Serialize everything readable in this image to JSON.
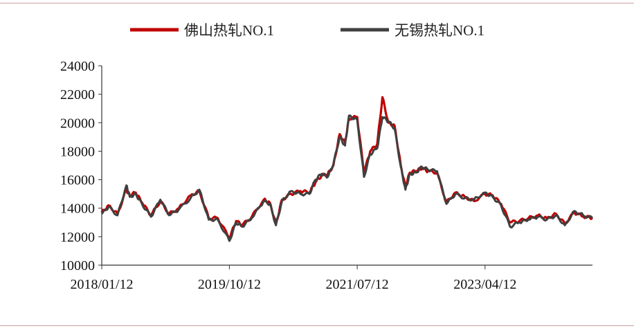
{
  "chart_data": {
    "type": "line",
    "legend_position": "top",
    "grid": false,
    "ylim": [
      10000,
      24000
    ],
    "yticks": [
      "24000",
      "22000",
      "20000",
      "18000",
      "16000",
      "14000",
      "12000",
      "10000"
    ],
    "xticks": [
      "2018/01/12",
      "2019/10/12",
      "2021/07/12",
      "2023/04/12"
    ],
    "xrange": [
      "2018/01/12",
      "2024/09/30"
    ],
    "series": [
      {
        "name": "佛山热轧NO.1",
        "color": "#c00000",
        "x": [
          "2018/01/12",
          "2018/02/15",
          "2018/04/01",
          "2018/05/15",
          "2018/06/01",
          "2018/07/01",
          "2018/08/01",
          "2018/09/15",
          "2018/11/01",
          "2018/12/15",
          "2019/02/01",
          "2019/04/01",
          "2019/05/15",
          "2019/07/01",
          "2019/08/15",
          "2019/10/12",
          "2019/11/15",
          "2019/12/15",
          "2020/02/01",
          "2020/04/01",
          "2020/05/01",
          "2020/06/01",
          "2020/07/01",
          "2020/08/15",
          "2020/10/01",
          "2020/11/15",
          "2020/12/15",
          "2021/01/15",
          "2021/02/15",
          "2021/03/15",
          "2021/04/15",
          "2021/05/12",
          "2021/06/01",
          "2021/07/12",
          "2021/08/15",
          "2021/09/15",
          "2021/10/20",
          "2021/11/15",
          "2021/12/15",
          "2022/01/15",
          "2022/02/15",
          "2022/03/10",
          "2022/04/01",
          "2022/05/01",
          "2022/06/01",
          "2022/07/01",
          "2022/08/15",
          "2022/10/01",
          "2022/11/15",
          "2023/01/01",
          "2023/02/15",
          "2023/04/12",
          "2023/05/20",
          "2023/07/01",
          "2023/08/15",
          "2023/10/01",
          "2023/11/15",
          "2024/01/01",
          "2024/02/15",
          "2024/04/01",
          "2024/05/15",
          "2024/07/01",
          "2024/08/15",
          "2024/09/30"
        ],
        "values": [
          13700,
          14200,
          13600,
          15300,
          14900,
          15100,
          14400,
          13500,
          14500,
          13600,
          14000,
          14900,
          15200,
          13300,
          13300,
          11900,
          13100,
          12800,
          13400,
          14600,
          14400,
          12900,
          14600,
          15000,
          15200,
          15100,
          15800,
          16300,
          16400,
          17000,
          19200,
          18600,
          20300,
          20400,
          16500,
          18000,
          18500,
          21800,
          20000,
          19800,
          17000,
          15500,
          16500,
          16600,
          16800,
          16600,
          16500,
          14400,
          15100,
          14800,
          14500,
          15000,
          14900,
          14300,
          13000,
          13100,
          13300,
          13500,
          13300,
          13600,
          12900,
          13700,
          13400,
          13300
        ]
      },
      {
        "name": "无锡热轧NO.1",
        "color": "#404040",
        "x": [
          "2018/01/12",
          "2018/02/15",
          "2018/04/01",
          "2018/05/15",
          "2018/06/01",
          "2018/07/01",
          "2018/08/01",
          "2018/09/15",
          "2018/11/01",
          "2018/12/15",
          "2019/02/01",
          "2019/04/01",
          "2019/05/15",
          "2019/07/01",
          "2019/08/15",
          "2019/10/12",
          "2019/11/15",
          "2019/12/15",
          "2020/02/01",
          "2020/04/01",
          "2020/05/01",
          "2020/06/01",
          "2020/07/01",
          "2020/08/15",
          "2020/10/01",
          "2020/11/15",
          "2020/12/15",
          "2021/01/15",
          "2021/02/15",
          "2021/03/15",
          "2021/04/15",
          "2021/05/12",
          "2021/06/01",
          "2021/07/12",
          "2021/08/15",
          "2021/09/15",
          "2021/10/20",
          "2021/11/15",
          "2021/12/15",
          "2022/01/15",
          "2022/02/15",
          "2022/03/10",
          "2022/04/01",
          "2022/05/01",
          "2022/06/01",
          "2022/07/01",
          "2022/08/15",
          "2022/10/01",
          "2022/11/15",
          "2023/01/01",
          "2023/02/15",
          "2023/04/12",
          "2023/05/20",
          "2023/07/01",
          "2023/08/15",
          "2023/10/01",
          "2023/11/15",
          "2024/01/01",
          "2024/02/15",
          "2024/04/01",
          "2024/05/15",
          "2024/07/01",
          "2024/08/15",
          "2024/09/30"
        ],
        "values": [
          13600,
          14100,
          13500,
          15600,
          14800,
          15000,
          14300,
          13400,
          14600,
          13500,
          13900,
          14700,
          15300,
          13200,
          13200,
          11700,
          13000,
          12700,
          13300,
          14500,
          14300,
          12800,
          14500,
          15200,
          15000,
          15000,
          16000,
          16400,
          16200,
          17100,
          19000,
          18400,
          20500,
          20200,
          16200,
          17800,
          18200,
          20400,
          20100,
          19600,
          16900,
          15300,
          16400,
          16500,
          16900,
          16700,
          16600,
          14300,
          15000,
          14700,
          14600,
          15100,
          14800,
          14200,
          12700,
          13000,
          13200,
          13400,
          13200,
          13500,
          12800,
          13800,
          13500,
          13300
        ]
      }
    ]
  }
}
